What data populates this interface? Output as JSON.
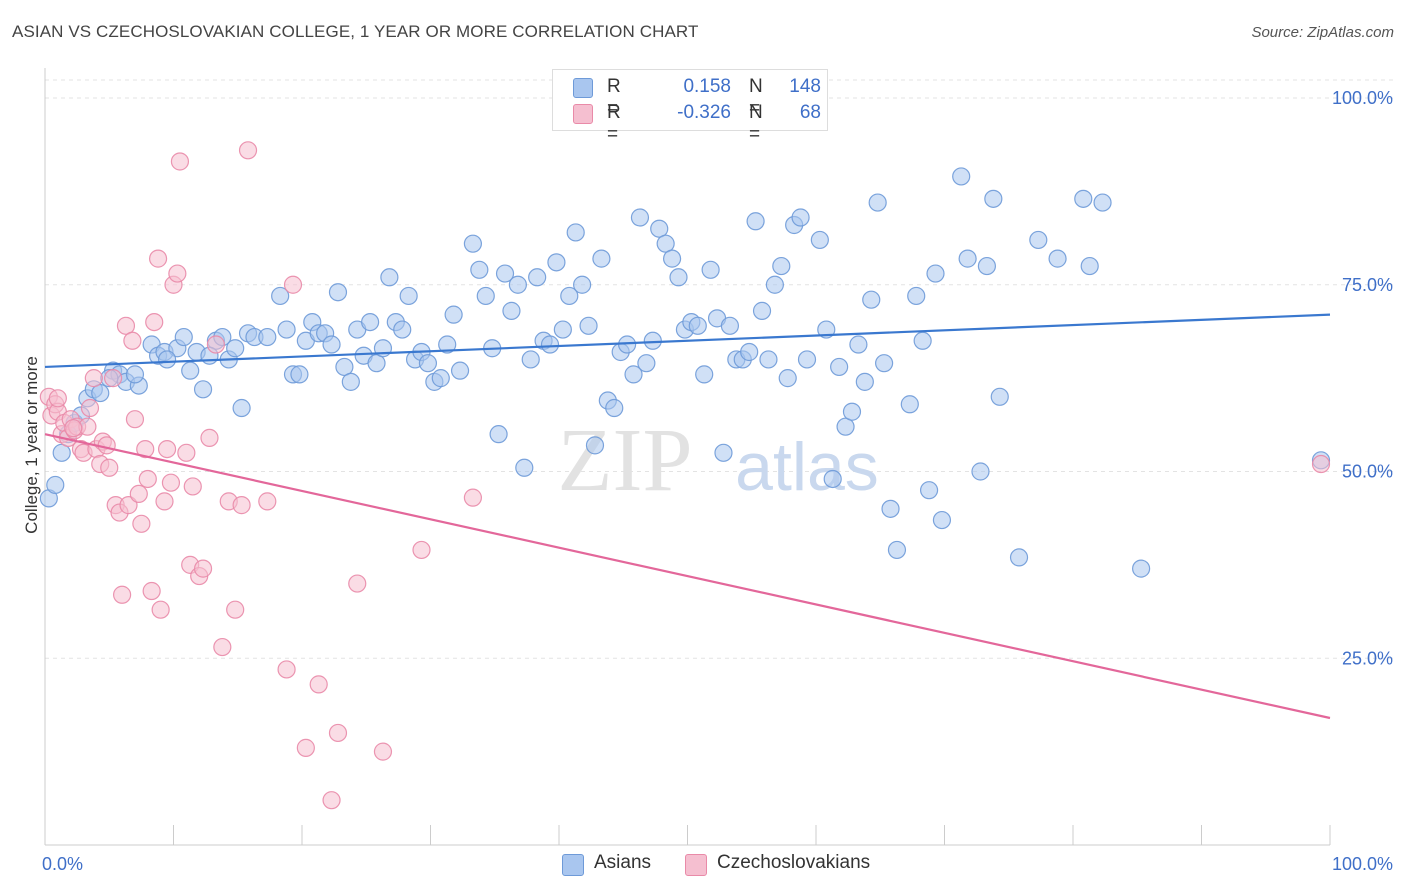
{
  "title": "ASIAN VS CZECHOSLOVAKIAN COLLEGE, 1 YEAR OR MORE CORRELATION CHART",
  "source": "Source: ZipAtlas.com",
  "watermark": {
    "zip": "ZIP",
    "atlas": "atlas"
  },
  "legend": {
    "rows": [
      {
        "r_label": "R =",
        "r_value": "0.158",
        "n_label": "N =",
        "n_value": "148",
        "color": "#a9c6ef",
        "border": "#6e9ad8"
      },
      {
        "r_label": "R =",
        "r_value": "-0.326",
        "n_label": "N =",
        "n_value": "68",
        "color": "#f5bfd0",
        "border": "#e98aa8"
      }
    ]
  },
  "bottom_legend": [
    {
      "label": "Asians",
      "color": "#a9c6ef",
      "border": "#6e9ad8"
    },
    {
      "label": "Czechoslovakians",
      "color": "#f5bfd0",
      "border": "#e98aa8"
    }
  ],
  "chart_data": {
    "type": "scatter",
    "title": "ASIAN VS CZECHOSLOVAKIAN COLLEGE, 1 YEAR OR MORE CORRELATION CHART",
    "xlabel": "",
    "ylabel": "College, 1 year or more",
    "xlim": [
      0,
      100
    ],
    "ylim": [
      0,
      100
    ],
    "x_tick_labels": [
      "0.0%",
      "100.0%"
    ],
    "y_ticks": [
      25,
      50,
      75,
      100
    ],
    "y_tick_labels": [
      "25.0%",
      "50.0%",
      "75.0%",
      "100.0%"
    ],
    "grid": "horizontal dashed",
    "series": [
      {
        "name": "Asians",
        "color": "#6e9ad8",
        "fill": "#a9c6ef",
        "R": 0.158,
        "N": 148,
        "trend": {
          "x": [
            0,
            100
          ],
          "y": [
            64.0,
            71.0
          ],
          "color": "#3a78cf"
        },
        "points": [
          [
            0.3,
            46.4
          ],
          [
            0.8,
            48.2
          ],
          [
            1.3,
            52.5
          ],
          [
            1.8,
            55.0
          ],
          [
            2.3,
            56.5
          ],
          [
            2.8,
            57.5
          ],
          [
            3.3,
            59.8
          ],
          [
            3.8,
            61.0
          ],
          [
            4.3,
            60.5
          ],
          [
            5.3,
            63.5
          ],
          [
            5.8,
            63.0
          ],
          [
            6.3,
            62.0
          ],
          [
            7.3,
            61.5
          ],
          [
            8.3,
            67.0
          ],
          [
            8.8,
            65.5
          ],
          [
            9.3,
            66.0
          ],
          [
            10.3,
            66.5
          ],
          [
            10.8,
            68.0
          ],
          [
            11.3,
            63.5
          ],
          [
            11.8,
            66.0
          ],
          [
            12.3,
            61.0
          ],
          [
            13.3,
            67.5
          ],
          [
            13.8,
            68.0
          ],
          [
            14.3,
            65.0
          ],
          [
            14.8,
            66.5
          ],
          [
            15.3,
            58.5
          ],
          [
            15.8,
            68.5
          ],
          [
            16.3,
            68.0
          ],
          [
            17.3,
            68.0
          ],
          [
            18.3,
            73.5
          ],
          [
            18.8,
            69.0
          ],
          [
            19.3,
            63.0
          ],
          [
            19.8,
            63.0
          ],
          [
            20.3,
            67.5
          ],
          [
            20.8,
            70.0
          ],
          [
            21.3,
            68.5
          ],
          [
            21.8,
            68.5
          ],
          [
            22.3,
            67.0
          ],
          [
            22.8,
            74.0
          ],
          [
            23.3,
            64.0
          ],
          [
            23.8,
            62.0
          ],
          [
            24.3,
            69.0
          ],
          [
            24.8,
            65.5
          ],
          [
            25.3,
            70.0
          ],
          [
            25.8,
            64.5
          ],
          [
            26.3,
            66.5
          ],
          [
            26.8,
            76.0
          ],
          [
            27.3,
            70.0
          ],
          [
            27.8,
            69.0
          ],
          [
            28.3,
            73.5
          ],
          [
            28.8,
            65.0
          ],
          [
            29.3,
            66.0
          ],
          [
            29.8,
            64.5
          ],
          [
            30.3,
            62.0
          ],
          [
            30.8,
            62.5
          ],
          [
            31.3,
            67.0
          ],
          [
            31.8,
            71.0
          ],
          [
            32.3,
            63.5
          ],
          [
            33.3,
            80.5
          ],
          [
            33.8,
            77.0
          ],
          [
            34.3,
            73.5
          ],
          [
            34.8,
            66.5
          ],
          [
            35.3,
            55.0
          ],
          [
            35.8,
            76.5
          ],
          [
            36.3,
            71.5
          ],
          [
            36.8,
            75.0
          ],
          [
            37.3,
            50.5
          ],
          [
            37.8,
            65.0
          ],
          [
            38.3,
            76.0
          ],
          [
            38.8,
            67.5
          ],
          [
            39.3,
            67.0
          ],
          [
            39.8,
            78.0
          ],
          [
            40.3,
            69.0
          ],
          [
            40.8,
            73.5
          ],
          [
            41.3,
            82.0
          ],
          [
            41.8,
            75.0
          ],
          [
            42.3,
            69.5
          ],
          [
            42.8,
            53.5
          ],
          [
            43.3,
            78.5
          ],
          [
            43.8,
            59.5
          ],
          [
            44.3,
            58.5
          ],
          [
            44.8,
            66.0
          ],
          [
            45.3,
            67.0
          ],
          [
            45.8,
            63.0
          ],
          [
            46.3,
            84.0
          ],
          [
            46.8,
            64.5
          ],
          [
            47.3,
            67.5
          ],
          [
            47.8,
            82.5
          ],
          [
            48.3,
            80.5
          ],
          [
            48.8,
            78.5
          ],
          [
            49.3,
            76.0
          ],
          [
            49.8,
            69.0
          ],
          [
            50.3,
            70.0
          ],
          [
            50.8,
            69.5
          ],
          [
            51.3,
            63.0
          ],
          [
            51.8,
            77.0
          ],
          [
            52.3,
            70.5
          ],
          [
            52.8,
            52.5
          ],
          [
            53.3,
            69.5
          ],
          [
            53.8,
            65.0
          ],
          [
            54.3,
            65.0
          ],
          [
            54.8,
            66.0
          ],
          [
            55.3,
            83.5
          ],
          [
            55.8,
            71.5
          ],
          [
            56.3,
            65.0
          ],
          [
            56.8,
            75.0
          ],
          [
            57.3,
            77.5
          ],
          [
            57.8,
            62.5
          ],
          [
            58.3,
            83.0
          ],
          [
            58.8,
            84.0
          ],
          [
            59.3,
            65.0
          ],
          [
            60.3,
            81.0
          ],
          [
            60.8,
            69.0
          ],
          [
            61.3,
            49.0
          ],
          [
            61.8,
            64.0
          ],
          [
            62.3,
            56.0
          ],
          [
            62.8,
            58.0
          ],
          [
            63.3,
            67.0
          ],
          [
            63.8,
            62.0
          ],
          [
            64.3,
            73.0
          ],
          [
            64.8,
            86.0
          ],
          [
            65.3,
            64.5
          ],
          [
            65.8,
            45.0
          ],
          [
            66.3,
            39.5
          ],
          [
            67.3,
            59.0
          ],
          [
            67.8,
            73.5
          ],
          [
            68.3,
            67.5
          ],
          [
            68.8,
            47.5
          ],
          [
            69.3,
            76.5
          ],
          [
            69.8,
            43.5
          ],
          [
            71.3,
            89.5
          ],
          [
            71.8,
            78.5
          ],
          [
            72.8,
            50.0
          ],
          [
            73.3,
            77.5
          ],
          [
            73.8,
            86.5
          ],
          [
            74.3,
            60.0
          ],
          [
            75.8,
            38.5
          ],
          [
            77.3,
            81.0
          ],
          [
            78.8,
            78.5
          ],
          [
            80.8,
            86.5
          ],
          [
            81.3,
            77.5
          ],
          [
            82.3,
            86.0
          ],
          [
            85.3,
            37.0
          ],
          [
            99.3,
            51.5
          ],
          [
            5.0,
            62.5
          ],
          [
            7.0,
            63.0
          ],
          [
            9.5,
            65.0
          ],
          [
            12.8,
            65.5
          ]
        ]
      },
      {
        "name": "Czechoslovakians",
        "color": "#e98aa8",
        "fill": "#f5bfd0",
        "R": -0.326,
        "N": 68,
        "trend": {
          "x": [
            0,
            100
          ],
          "y": [
            55.0,
            17.0
          ],
          "color": "#e3679a"
        },
        "points": [
          [
            0.3,
            60.0
          ],
          [
            0.5,
            57.5
          ],
          [
            0.8,
            59.0
          ],
          [
            1.0,
            58.0
          ],
          [
            1.3,
            55.0
          ],
          [
            1.5,
            56.5
          ],
          [
            1.8,
            54.5
          ],
          [
            2.0,
            57.0
          ],
          [
            2.3,
            55.5
          ],
          [
            2.5,
            56.0
          ],
          [
            2.8,
            53.0
          ],
          [
            3.0,
            52.5
          ],
          [
            3.3,
            56.0
          ],
          [
            3.5,
            58.5
          ],
          [
            3.8,
            62.5
          ],
          [
            4.0,
            53.0
          ],
          [
            4.3,
            51.0
          ],
          [
            4.5,
            54.0
          ],
          [
            4.8,
            53.5
          ],
          [
            5.0,
            50.5
          ],
          [
            5.3,
            62.5
          ],
          [
            5.5,
            45.5
          ],
          [
            5.8,
            44.5
          ],
          [
            6.0,
            33.5
          ],
          [
            6.3,
            69.5
          ],
          [
            6.5,
            45.5
          ],
          [
            6.8,
            67.5
          ],
          [
            7.0,
            57.0
          ],
          [
            7.3,
            47.0
          ],
          [
            7.5,
            43.0
          ],
          [
            7.8,
            53.0
          ],
          [
            8.0,
            49.0
          ],
          [
            8.3,
            34.0
          ],
          [
            8.5,
            70.0
          ],
          [
            8.8,
            78.5
          ],
          [
            9.0,
            31.5
          ],
          [
            9.3,
            46.0
          ],
          [
            9.5,
            53.0
          ],
          [
            9.8,
            48.5
          ],
          [
            10.0,
            75.0
          ],
          [
            10.3,
            76.5
          ],
          [
            10.5,
            91.5
          ],
          [
            11.0,
            52.5
          ],
          [
            11.3,
            37.5
          ],
          [
            11.5,
            48.0
          ],
          [
            12.0,
            36.0
          ],
          [
            12.3,
            37.0
          ],
          [
            12.8,
            54.5
          ],
          [
            13.3,
            67.0
          ],
          [
            13.8,
            26.5
          ],
          [
            14.3,
            46.0
          ],
          [
            14.8,
            31.5
          ],
          [
            15.3,
            45.5
          ],
          [
            15.8,
            93.0
          ],
          [
            17.3,
            46.0
          ],
          [
            18.8,
            23.5
          ],
          [
            19.3,
            75.0
          ],
          [
            20.3,
            13.0
          ],
          [
            21.3,
            21.5
          ],
          [
            22.3,
            6.0
          ],
          [
            22.8,
            15.0
          ],
          [
            24.3,
            35.0
          ],
          [
            26.3,
            12.5
          ],
          [
            29.3,
            39.5
          ],
          [
            33.3,
            46.5
          ],
          [
            99.3,
            51.0
          ],
          [
            1.0,
            59.8
          ],
          [
            2.2,
            55.8
          ]
        ]
      }
    ]
  }
}
